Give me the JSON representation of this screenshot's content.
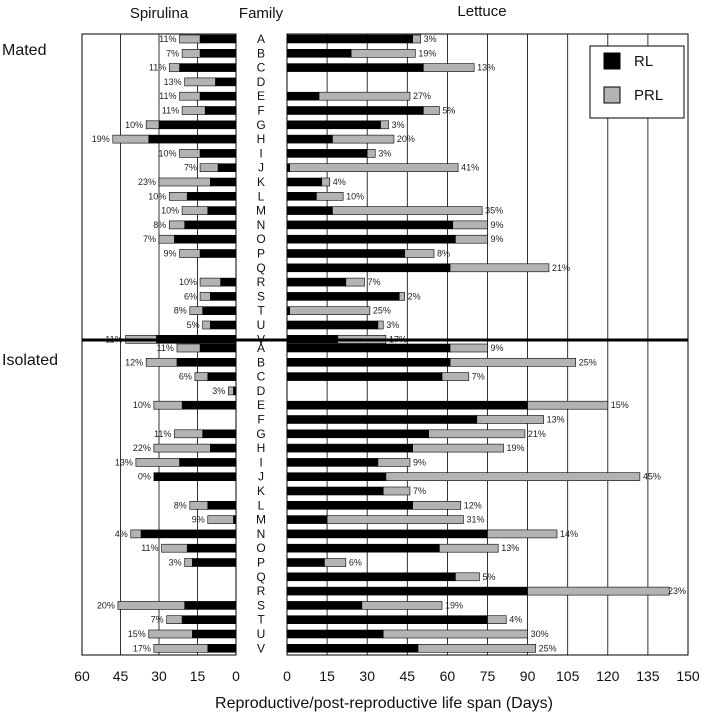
{
  "chart_data": {
    "type": "bar",
    "orientation": "horizontal",
    "stacked": true,
    "panels": [
      "Spirulina",
      "Lettuce"
    ],
    "center_label": "Family",
    "xlabel": "Reproductive/post-reproductive life span (Days)",
    "spirulina_ticks": [
      "60",
      "45",
      "30",
      "15",
      "0"
    ],
    "lettuce_ticks": [
      "0",
      "15",
      "30",
      "45",
      "60",
      "75",
      "90",
      "105",
      "120",
      "135",
      "150"
    ],
    "spirulina_xlim": [
      0,
      60
    ],
    "lettuce_xlim": [
      0,
      150
    ],
    "grid": true,
    "legend": {
      "position": "top-right",
      "entries": [
        "RL",
        "PRL"
      ]
    },
    "colors": {
      "RL": "#000000",
      "PRL": "#b3b3b3"
    },
    "families": [
      "A",
      "B",
      "C",
      "D",
      "E",
      "F",
      "G",
      "H",
      "I",
      "J",
      "K",
      "L",
      "M",
      "N",
      "O",
      "P",
      "Q",
      "R",
      "S",
      "T",
      "U",
      "V"
    ],
    "groups": [
      {
        "name": "Mated",
        "spirulina": [
          {
            "family": "A",
            "rl": 14,
            "prl": 8,
            "pct": "11%"
          },
          {
            "family": "B",
            "rl": 14,
            "prl": 7,
            "pct": "7%"
          },
          {
            "family": "C",
            "rl": 22,
            "prl": 4,
            "pct": "11%"
          },
          {
            "family": "D",
            "rl": 8,
            "prl": 12,
            "pct": "13%"
          },
          {
            "family": "E",
            "rl": 14,
            "prl": 8,
            "pct": "11%"
          },
          {
            "family": "F",
            "rl": 12,
            "prl": 9,
            "pct": "11%"
          },
          {
            "family": "G",
            "rl": 30,
            "prl": 5,
            "pct": "10%"
          },
          {
            "family": "H",
            "rl": 34,
            "prl": 14,
            "pct": "19%"
          },
          {
            "family": "I",
            "rl": 14,
            "prl": 8,
            "pct": "10%"
          },
          {
            "family": "J",
            "rl": 7,
            "prl": 7,
            "pct": "7%"
          },
          {
            "family": "K",
            "rl": 10,
            "prl": 20,
            "pct": "23%"
          },
          {
            "family": "L",
            "rl": 19,
            "prl": 7,
            "pct": "10%"
          },
          {
            "family": "M",
            "rl": 11,
            "prl": 10,
            "pct": "10%"
          },
          {
            "family": "N",
            "rl": 20,
            "prl": 6,
            "pct": "8%"
          },
          {
            "family": "O",
            "rl": 24,
            "prl": 6,
            "pct": "7%"
          },
          {
            "family": "P",
            "rl": 14,
            "prl": 8,
            "pct": "9%"
          },
          {
            "family": "Q",
            "rl": 0,
            "prl": 0,
            "pct": ""
          },
          {
            "family": "R",
            "rl": 6,
            "prl": 8,
            "pct": "10%"
          },
          {
            "family": "S",
            "rl": 10,
            "prl": 4,
            "pct": "6%"
          },
          {
            "family": "T",
            "rl": 13,
            "prl": 5,
            "pct": "8%"
          },
          {
            "family": "U",
            "rl": 10,
            "prl": 3,
            "pct": "5%"
          },
          {
            "family": "V",
            "rl": 31,
            "prl": 12,
            "pct": "11%"
          }
        ],
        "lettuce": [
          {
            "family": "A",
            "rl": 47,
            "prl": 3,
            "pct": "3%"
          },
          {
            "family": "B",
            "rl": 24,
            "prl": 24,
            "pct": "19%"
          },
          {
            "family": "C",
            "rl": 51,
            "prl": 19,
            "pct": "13%"
          },
          {
            "family": "D",
            "rl": 0,
            "prl": 0,
            "pct": ""
          },
          {
            "family": "E",
            "rl": 12,
            "prl": 34,
            "pct": "27%"
          },
          {
            "family": "F",
            "rl": 51,
            "prl": 6,
            "pct": "5%"
          },
          {
            "family": "G",
            "rl": 35,
            "prl": 3,
            "pct": "3%"
          },
          {
            "family": "H",
            "rl": 17,
            "prl": 23,
            "pct": "20%"
          },
          {
            "family": "I",
            "rl": 30,
            "prl": 3,
            "pct": "3%"
          },
          {
            "family": "J",
            "rl": 1,
            "prl": 63,
            "pct": "41%"
          },
          {
            "family": "K",
            "rl": 13,
            "prl": 3,
            "pct": "4%"
          },
          {
            "family": "L",
            "rl": 11,
            "prl": 10,
            "pct": "10%"
          },
          {
            "family": "M",
            "rl": 17,
            "prl": 56,
            "pct": "35%"
          },
          {
            "family": "N",
            "rl": 62,
            "prl": 13,
            "pct": "9%"
          },
          {
            "family": "O",
            "rl": 63,
            "prl": 12,
            "pct": "9%"
          },
          {
            "family": "P",
            "rl": 44,
            "prl": 11,
            "pct": "8%"
          },
          {
            "family": "Q",
            "rl": 61,
            "prl": 37,
            "pct": "21%"
          },
          {
            "family": "R",
            "rl": 22,
            "prl": 7,
            "pct": "7%"
          },
          {
            "family": "S",
            "rl": 42,
            "prl": 2,
            "pct": "2%"
          },
          {
            "family": "T",
            "rl": 1,
            "prl": 30,
            "pct": "25%"
          },
          {
            "family": "U",
            "rl": 34,
            "prl": 2,
            "pct": "3%"
          },
          {
            "family": "V",
            "rl": 19,
            "prl": 18,
            "pct": "17%"
          }
        ]
      },
      {
        "name": "Isolated",
        "spirulina": [
          {
            "family": "A",
            "rl": 14,
            "prl": 9,
            "pct": "11%"
          },
          {
            "family": "B",
            "rl": 23,
            "prl": 12,
            "pct": "12%"
          },
          {
            "family": "C",
            "rl": 11,
            "prl": 5,
            "pct": "6%"
          },
          {
            "family": "D",
            "rl": 1,
            "prl": 2,
            "pct": "3%"
          },
          {
            "family": "E",
            "rl": 21,
            "prl": 11,
            "pct": "10%"
          },
          {
            "family": "F",
            "rl": 0,
            "prl": 0,
            "pct": ""
          },
          {
            "family": "G",
            "rl": 13,
            "prl": 11,
            "pct": "11%"
          },
          {
            "family": "H",
            "rl": 10,
            "prl": 22,
            "pct": "22%"
          },
          {
            "family": "I",
            "rl": 22,
            "prl": 17,
            "pct": "13%"
          },
          {
            "family": "J",
            "rl": 32,
            "prl": 0,
            "pct": "0%"
          },
          {
            "family": "K",
            "rl": 0,
            "prl": 0,
            "pct": ""
          },
          {
            "family": "L",
            "rl": 11,
            "prl": 7,
            "pct": "8%"
          },
          {
            "family": "M",
            "rl": 1,
            "prl": 10,
            "pct": "9%"
          },
          {
            "family": "N",
            "rl": 37,
            "prl": 4,
            "pct": "4%"
          },
          {
            "family": "O",
            "rl": 19,
            "prl": 10,
            "pct": "11%"
          },
          {
            "family": "P",
            "rl": 17,
            "prl": 3,
            "pct": "3%"
          },
          {
            "family": "Q",
            "rl": 0,
            "prl": 0,
            "pct": ""
          },
          {
            "family": "R",
            "rl": 0,
            "prl": 0,
            "pct": ""
          },
          {
            "family": "S",
            "rl": 20,
            "prl": 26,
            "pct": "20%"
          },
          {
            "family": "T",
            "rl": 21,
            "prl": 6,
            "pct": "7%"
          },
          {
            "family": "U",
            "rl": 17,
            "prl": 17,
            "pct": "15%"
          },
          {
            "family": "V",
            "rl": 11,
            "prl": 21,
            "pct": "17%"
          }
        ],
        "lettuce": [
          {
            "family": "A",
            "rl": 61,
            "prl": 14,
            "pct": "9%"
          },
          {
            "family": "B",
            "rl": 61,
            "prl": 47,
            "pct": "25%"
          },
          {
            "family": "C",
            "rl": 58,
            "prl": 10,
            "pct": "7%"
          },
          {
            "family": "D",
            "rl": 0,
            "prl": 0,
            "pct": ""
          },
          {
            "family": "E",
            "rl": 90,
            "prl": 30,
            "pct": "15%"
          },
          {
            "family": "F",
            "rl": 71,
            "prl": 25,
            "pct": "13%"
          },
          {
            "family": "G",
            "rl": 53,
            "prl": 36,
            "pct": "21%"
          },
          {
            "family": "H",
            "rl": 47,
            "prl": 34,
            "pct": "19%"
          },
          {
            "family": "I",
            "rl": 34,
            "prl": 12,
            "pct": "9%"
          },
          {
            "family": "J",
            "rl": 37,
            "prl": 95,
            "pct": "45%"
          },
          {
            "family": "K",
            "rl": 36,
            "prl": 10,
            "pct": "7%"
          },
          {
            "family": "L",
            "rl": 47,
            "prl": 18,
            "pct": "12%"
          },
          {
            "family": "M",
            "rl": 15,
            "prl": 51,
            "pct": "31%"
          },
          {
            "family": "N",
            "rl": 75,
            "prl": 26,
            "pct": "14%"
          },
          {
            "family": "O",
            "rl": 57,
            "prl": 22,
            "pct": "13%"
          },
          {
            "family": "P",
            "rl": 14,
            "prl": 8,
            "pct": "6%"
          },
          {
            "family": "Q",
            "rl": 63,
            "prl": 9,
            "pct": "5%"
          },
          {
            "family": "R",
            "rl": 90,
            "prl": 53,
            "pct": "23%"
          },
          {
            "family": "S",
            "rl": 28,
            "prl": 30,
            "pct": "19%"
          },
          {
            "family": "T",
            "rl": 75,
            "prl": 7,
            "pct": "4%"
          },
          {
            "family": "U",
            "rl": 36,
            "prl": 54,
            "pct": "30%"
          },
          {
            "family": "V",
            "rl": 49,
            "prl": 44,
            "pct": "25%"
          }
        ]
      }
    ]
  }
}
